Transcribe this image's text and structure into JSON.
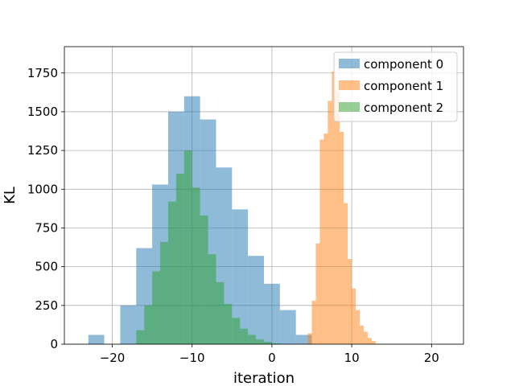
{
  "chart_data": {
    "type": "histogram",
    "xlabel": "iteration",
    "ylabel": "KL",
    "xlim": [
      -26,
      24
    ],
    "ylim": [
      0,
      1920
    ],
    "xticks": [
      -20,
      -10,
      0,
      10,
      20
    ],
    "xtick_labels": [
      "−20",
      "−10",
      "0",
      "10",
      "20"
    ],
    "yticks": [
      0,
      250,
      500,
      750,
      1000,
      1250,
      1500,
      1750
    ],
    "grid": true,
    "legend_position": "top-right",
    "bin_width": 1.0,
    "series": [
      {
        "name": "component 0",
        "color": "#1f77b4",
        "opacity": 0.5,
        "bins": [
          {
            "x0": -23.0,
            "count": 60
          },
          {
            "x0": -21.0,
            "count": 0
          },
          {
            "x0": -19.0,
            "count": 250
          },
          {
            "x0": -17.0,
            "count": 620
          },
          {
            "x0": -15.0,
            "count": 1030
          },
          {
            "x0": -13.0,
            "count": 1500
          },
          {
            "x0": -11.0,
            "count": 1600
          },
          {
            "x0": -9.0,
            "count": 1450
          },
          {
            "x0": -7.0,
            "count": 1140
          },
          {
            "x0": -5.0,
            "count": 870
          },
          {
            "x0": -3.0,
            "count": 570
          },
          {
            "x0": -1.0,
            "count": 390
          },
          {
            "x0": 1.0,
            "count": 220
          },
          {
            "x0": 3.0,
            "count": 60
          }
        ]
      },
      {
        "name": "component 1",
        "color": "#ff7f0e",
        "opacity": 0.5,
        "bins": [
          {
            "x0": 4.5,
            "count": 70
          },
          {
            "x0": 5.0,
            "count": 280
          },
          {
            "x0": 5.5,
            "count": 650
          },
          {
            "x0": 6.0,
            "count": 1320
          },
          {
            "x0": 6.5,
            "count": 1360
          },
          {
            "x0": 7.0,
            "count": 1570
          },
          {
            "x0": 7.5,
            "count": 1760
          },
          {
            "x0": 8.0,
            "count": 1630
          },
          {
            "x0": 8.5,
            "count": 1370
          },
          {
            "x0": 9.0,
            "count": 910
          },
          {
            "x0": 9.5,
            "count": 550
          },
          {
            "x0": 10.0,
            "count": 360
          },
          {
            "x0": 10.5,
            "count": 220
          },
          {
            "x0": 11.0,
            "count": 120
          },
          {
            "x0": 11.5,
            "count": 80
          },
          {
            "x0": 12.0,
            "count": 40
          },
          {
            "x0": 12.5,
            "count": 20
          }
        ]
      },
      {
        "name": "component 2",
        "color": "#2ca02c",
        "opacity": 0.5,
        "bins": [
          {
            "x0": -17.0,
            "count": 90
          },
          {
            "x0": -16.0,
            "count": 250
          },
          {
            "x0": -15.0,
            "count": 470
          },
          {
            "x0": -14.0,
            "count": 660
          },
          {
            "x0": -13.0,
            "count": 920
          },
          {
            "x0": -12.0,
            "count": 1100
          },
          {
            "x0": -11.0,
            "count": 1250
          },
          {
            "x0": -10.0,
            "count": 1010
          },
          {
            "x0": -9.0,
            "count": 830
          },
          {
            "x0": -8.0,
            "count": 580
          },
          {
            "x0": -7.0,
            "count": 400
          },
          {
            "x0": -6.0,
            "count": 260
          },
          {
            "x0": -5.0,
            "count": 170
          },
          {
            "x0": -4.0,
            "count": 100
          },
          {
            "x0": -3.0,
            "count": 60
          },
          {
            "x0": -2.0,
            "count": 30
          },
          {
            "x0": -1.0,
            "count": 15
          },
          {
            "x0": 0.0,
            "count": 5
          }
        ]
      }
    ]
  }
}
